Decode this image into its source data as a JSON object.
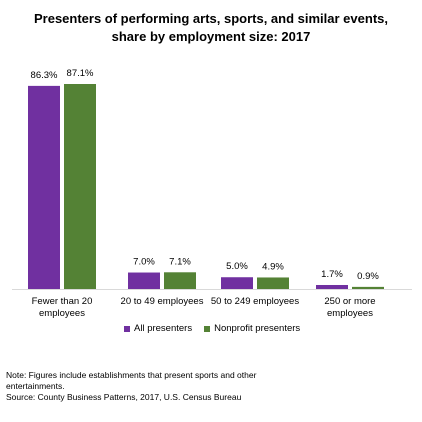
{
  "chart_data": {
    "type": "bar",
    "title_line1": "Presenters of performing arts, sports, and similar events,",
    "title_line2": "share by employment size: 2017",
    "categories": [
      [
        "Fewer than 20",
        "employees"
      ],
      [
        "20 to 49 employees"
      ],
      [
        "50 to 249 employees"
      ],
      [
        "250 or more",
        "employees"
      ]
    ],
    "series": [
      {
        "name": "All presenters",
        "values": [
          86.3,
          7.0,
          5.0,
          1.7
        ],
        "labels": [
          "86.3%",
          "7.0%",
          "5.0%",
          "1.7%"
        ],
        "color": "#7030A0"
      },
      {
        "name": "Nonprofit presenters",
        "values": [
          87.1,
          7.1,
          4.9,
          0.9
        ],
        "labels": [
          "87.1%",
          "7.1%",
          "4.9%",
          "0.9%"
        ],
        "color": "#548235"
      }
    ],
    "ylim": [
      0,
      100
    ],
    "grid": false,
    "legend_position": "bottom"
  },
  "notes": {
    "line1": "Note: Figures include establishments that present sports and other",
    "line2": "entertainments.",
    "line3": "Source: County Business Patterns, 2017, U.S. Census Bureau"
  }
}
